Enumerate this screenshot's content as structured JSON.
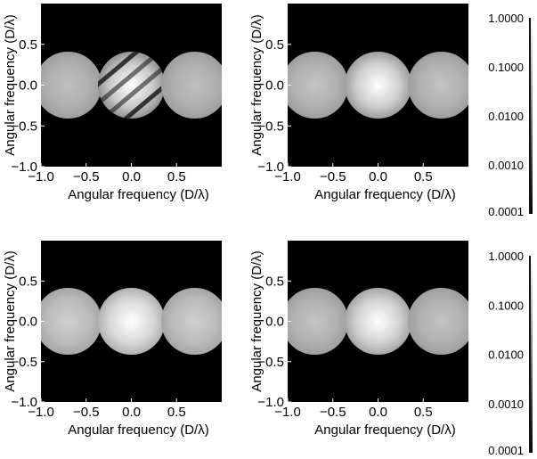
{
  "chart_data": [
    {
      "type": "heatmap",
      "panel": "top-left",
      "xlabel": "Angular frequency (D/λ)",
      "ylabel": "Angular frequency (D/λ)",
      "xlim": [
        -1.0,
        1.0
      ],
      "ylim": [
        -1.0,
        1.0
      ],
      "x_ticks": [
        -1.0,
        -0.5,
        0.0,
        0.5
      ],
      "x_tick_labels": [
        "−1.0",
        "−0.5",
        "0.0",
        "0.5"
      ],
      "y_ticks": [
        0.5,
        0.0,
        -0.5,
        -1.0
      ],
      "y_tick_labels": [
        "0.5",
        "0.0",
        "−0.5",
        "−1.0"
      ],
      "disks": [
        {
          "cx": -0.7,
          "cy": 0.0,
          "r": 0.37,
          "peak": 0.1,
          "edge": 0.03
        },
        {
          "cx": 0.0,
          "cy": 0.0,
          "r": 0.37,
          "peak": 1.0,
          "edge": 0.02,
          "fringes": true
        },
        {
          "cx": 0.7,
          "cy": 0.0,
          "r": 0.37,
          "peak": 0.1,
          "edge": 0.03
        }
      ]
    },
    {
      "type": "heatmap",
      "panel": "top-right",
      "xlabel": "Angular frequency (D/λ)",
      "ylabel": "Angular frequency (D/λ)",
      "xlim": [
        -1.0,
        1.0
      ],
      "ylim": [
        -1.0,
        1.0
      ],
      "x_ticks": [
        -1.0,
        -0.5,
        0.0,
        0.5
      ],
      "x_tick_labels": [
        "−1.0",
        "−0.5",
        "0.0",
        "0.5"
      ],
      "y_ticks": [
        0.5,
        0.0,
        -0.5,
        -1.0
      ],
      "y_tick_labels": [
        "0.5",
        "0.0",
        "−0.5",
        "−1.0"
      ],
      "disks": [
        {
          "cx": -0.7,
          "cy": 0.0,
          "r": 0.37,
          "peak": 0.12,
          "edge": 0.03
        },
        {
          "cx": 0.0,
          "cy": 0.0,
          "r": 0.37,
          "peak": 1.0,
          "edge": 0.03
        },
        {
          "cx": 0.7,
          "cy": 0.0,
          "r": 0.37,
          "peak": 0.12,
          "edge": 0.03
        }
      ]
    },
    {
      "type": "heatmap",
      "panel": "bottom-left",
      "xlabel": "Angular frequency (D/λ)",
      "ylabel": "Angular frequency (D/λ)",
      "xlim": [
        -1.0,
        1.0
      ],
      "ylim": [
        -1.0,
        1.0
      ],
      "x_ticks": [
        -1.0,
        -0.5,
        0.0,
        0.5
      ],
      "x_tick_labels": [
        "−1.0",
        "−0.5",
        "0.0",
        "0.5"
      ],
      "y_ticks": [
        0.5,
        0.0,
        -0.5,
        -1.0
      ],
      "y_tick_labels": [
        "0.5",
        "0.0",
        "−0.5",
        "−1.0"
      ],
      "disks": [
        {
          "cx": -0.7,
          "cy": 0.0,
          "r": 0.37,
          "peak": 0.18,
          "edge": 0.04
        },
        {
          "cx": 0.0,
          "cy": 0.0,
          "r": 0.37,
          "peak": 1.0,
          "edge": 0.06
        },
        {
          "cx": 0.7,
          "cy": 0.0,
          "r": 0.37,
          "peak": 0.18,
          "edge": 0.04
        }
      ]
    },
    {
      "type": "heatmap",
      "panel": "bottom-right",
      "xlabel": "Angular frequency (D/λ)",
      "ylabel": "Angular frequency (D/λ)",
      "xlim": [
        -1.0,
        1.0
      ],
      "ylim": [
        -1.0,
        1.0
      ],
      "x_ticks": [
        -1.0,
        -0.5,
        0.0,
        0.5
      ],
      "x_tick_labels": [
        "−1.0",
        "−0.5",
        "0.0",
        "0.5"
      ],
      "y_ticks": [
        0.5,
        0.0,
        -0.5,
        -1.0
      ],
      "y_tick_labels": [
        "0.5",
        "0.0",
        "−0.5",
        "−1.0"
      ],
      "disks": [
        {
          "cx": -0.7,
          "cy": 0.0,
          "r": 0.37,
          "peak": 0.12,
          "edge": 0.03
        },
        {
          "cx": 0.0,
          "cy": 0.0,
          "r": 0.37,
          "peak": 1.0,
          "edge": 0.04
        },
        {
          "cx": 0.7,
          "cy": 0.0,
          "r": 0.37,
          "peak": 0.12,
          "edge": 0.03
        }
      ]
    }
  ],
  "colorbars": [
    {
      "row": "top",
      "scale": "log",
      "range": [
        0.0001,
        1.0
      ],
      "tick_values": [
        1.0,
        0.1,
        0.01,
        0.001,
        0.0001
      ],
      "tick_labels": [
        "1.0000",
        "0.1000",
        "0.0100",
        "0.0010",
        "0.0001"
      ]
    },
    {
      "row": "bottom",
      "scale": "log",
      "range": [
        0.0001,
        1.0
      ],
      "tick_values": [
        1.0,
        0.1,
        0.01,
        0.001,
        0.0001
      ],
      "tick_labels": [
        "1.0000",
        "0.1000",
        "0.0100",
        "0.0010",
        "0.0001"
      ]
    }
  ],
  "colors": {
    "background": "#000000",
    "colormap": "gray"
  }
}
